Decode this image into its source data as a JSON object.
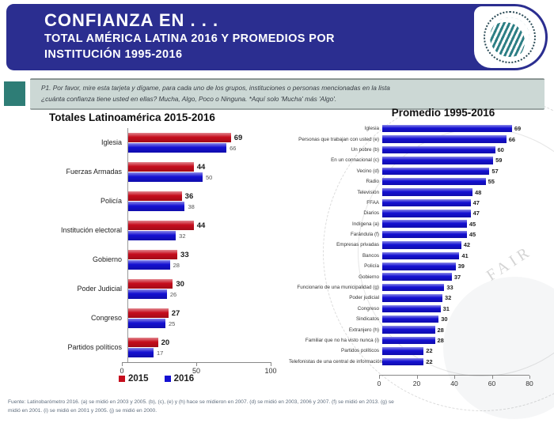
{
  "header": {
    "line1": "CONFIANZA EN . . .",
    "line2": "TOTAL AMÉRICA LATINA 2016 Y PROMEDIOS POR",
    "line3": "INSTITUCIÓN 1995-2016",
    "logo_name": "latinobarometro-globe-logo"
  },
  "question": {
    "line1": "P1. Por favor, mire esta tarjeta y dígame, para cada uno de los grupos, instituciones o personas mencionadas en la lista",
    "line2": "¿cuánta confianza tiene usted en ellas? Mucha, Algo, Poco o Ninguna. *Aquí solo 'Mucha' más 'Algo'."
  },
  "chart_data": [
    {
      "type": "bar",
      "orientation": "horizontal",
      "title": "Totales Latinoamérica 2015-2016",
      "categories": [
        "Iglesia",
        "Fuerzas Armadas",
        "Policía",
        "Institución electoral",
        "Gobierno",
        "Poder Judicial",
        "Congreso",
        "Partidos políticos"
      ],
      "series": [
        {
          "name": "2015",
          "color": "#c60d1d",
          "values": [
            69,
            44,
            36,
            44,
            33,
            30,
            27,
            20
          ]
        },
        {
          "name": "2016",
          "color": "#1410d2",
          "values": [
            66,
            50,
            38,
            32,
            28,
            26,
            25,
            17
          ]
        }
      ],
      "x_ticks": [
        0,
        50,
        100
      ],
      "xlim": [
        0,
        100
      ],
      "grid": false,
      "legend_position": "bottom"
    },
    {
      "type": "bar",
      "orientation": "horizontal",
      "title": "Promedio 1995-2016",
      "bar_color": "#1410d2",
      "categories": [
        "Iglesia",
        "Personas que trabajan con usted (e)",
        "Un pobre (b)",
        "En un connacional (c)",
        "Vecino (d)",
        "Radio",
        "Televisión",
        "FFAA",
        "Diarios",
        "Indígena (a)",
        "Farándula (f)",
        "Empresas privadas",
        "Bancos",
        "Policía",
        "Gobierno",
        "Funcionario de una municipalidad (g)",
        "Poder judicial",
        "Congreso",
        "Sindicatos",
        "Extranjero (h)",
        "Familiar que no ha visto nunca (i)",
        "Partidos políticos",
        "Telefonistas de una central de información (j)"
      ],
      "values": [
        69,
        66,
        60,
        59,
        57,
        55,
        48,
        47,
        47,
        45,
        45,
        42,
        41,
        39,
        37,
        33,
        32,
        31,
        30,
        28,
        28,
        22,
        22
      ],
      "x_ticks": [
        0,
        20,
        40,
        60,
        80
      ],
      "xlim": [
        0,
        80
      ],
      "grid": false,
      "legend_position": "none"
    }
  ],
  "footer": {
    "line1": "Fuente: Latinobarómetro 2016. (a) se midió en 2003 y 2005. (b), (c), (e) y (h) hace se midieron en 2007. (d) se midió en 2003, 2006 y 2007. (f) se midió en 2013. (g) se",
    "line2": "midió en 2001. (i) se midió en 2001 y 2005. (j) se midió en 2000."
  },
  "colors": {
    "header_bg": "#2b2e90",
    "accent_teal": "#2e7d76",
    "question_bg": "#ccd8d5",
    "red_2015": "#c60d1d",
    "blue_2016": "#1410d2"
  }
}
